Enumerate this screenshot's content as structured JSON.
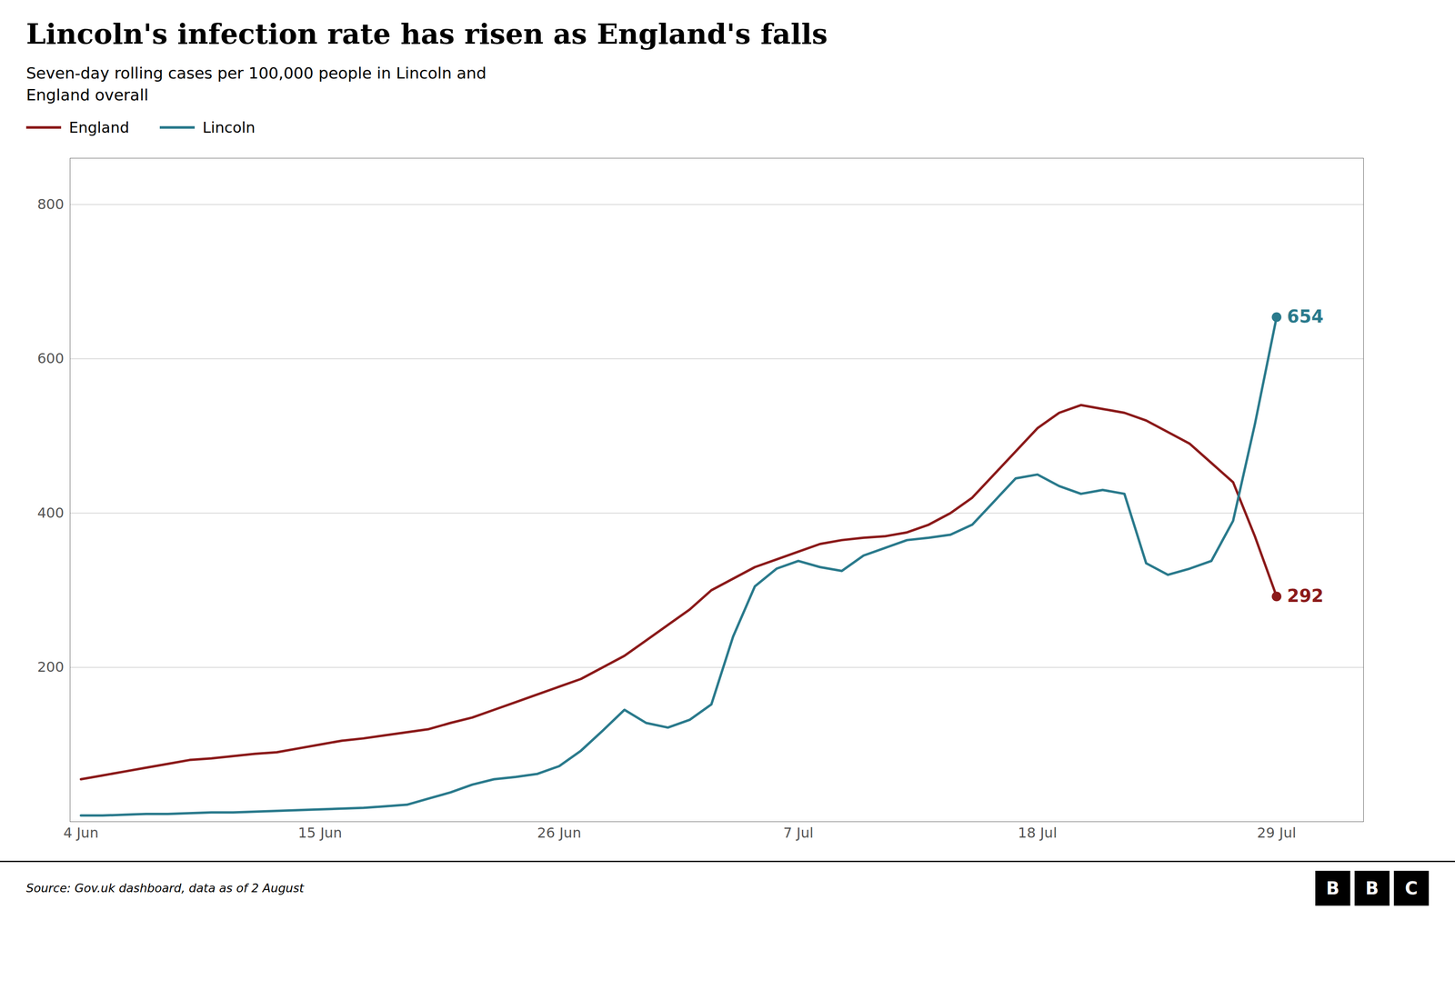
{
  "chart_data": {
    "type": "line",
    "title": "Lincoln's infection rate has risen as England's falls",
    "subtitle": "Seven-day rolling cases per 100,000 people in Lincoln and\nEngland overall",
    "source": "Source: Gov.uk dashboard, data as of  2 August",
    "logo": "BBC",
    "x": [
      0,
      1,
      2,
      3,
      4,
      5,
      6,
      7,
      8,
      9,
      10,
      11,
      12,
      13,
      14,
      15,
      16,
      17,
      18,
      19,
      20,
      21,
      22,
      23,
      24,
      25,
      26,
      27,
      28,
      29,
      30,
      31,
      32,
      33,
      34,
      35,
      36,
      37,
      38,
      39,
      40,
      41,
      42,
      43,
      44,
      45,
      46,
      47,
      48,
      49,
      50,
      51,
      52,
      53,
      54,
      55
    ],
    "series": [
      {
        "name": "England",
        "color": "#8B1A1A",
        "values": [
          55,
          60,
          65,
          70,
          75,
          80,
          82,
          85,
          88,
          90,
          95,
          100,
          105,
          108,
          112,
          116,
          120,
          128,
          135,
          145,
          155,
          165,
          175,
          185,
          200,
          215,
          235,
          255,
          275,
          300,
          315,
          330,
          340,
          350,
          360,
          365,
          368,
          370,
          375,
          385,
          400,
          420,
          450,
          480,
          510,
          530,
          540,
          535,
          530,
          520,
          505,
          490,
          465,
          440,
          370,
          292
        ]
      },
      {
        "name": "Lincoln",
        "color": "#2A7A8C",
        "values": [
          8,
          8,
          9,
          10,
          10,
          11,
          12,
          12,
          13,
          14,
          15,
          16,
          17,
          18,
          20,
          22,
          30,
          38,
          48,
          55,
          58,
          62,
          72,
          92,
          118,
          145,
          128,
          122,
          132,
          152,
          240,
          305,
          328,
          338,
          330,
          325,
          345,
          355,
          365,
          368,
          372,
          385,
          415,
          445,
          450,
          435,
          425,
          430,
          425,
          335,
          320,
          328,
          338,
          390,
          515,
          654
        ]
      }
    ],
    "annotations": [
      {
        "text": "292",
        "x": 55,
        "y": 292,
        "color": "#8B1A1A"
      },
      {
        "text": "654",
        "x": 55,
        "y": 654,
        "color": "#2A7A8C"
      }
    ],
    "xlim": [
      -0.5,
      59
    ],
    "xticks": [
      {
        "value": 0,
        "label": "4 Jun"
      },
      {
        "value": 11,
        "label": "15 Jun"
      },
      {
        "value": 22,
        "label": "26 Jun"
      },
      {
        "value": 33,
        "label": "7 Jul"
      },
      {
        "value": 44,
        "label": "18 Jul"
      },
      {
        "value": 55,
        "label": "29 Jul"
      }
    ],
    "ylim": [
      0,
      860
    ],
    "yticks": [
      200,
      400,
      600,
      800
    ],
    "grid": true,
    "legend": "upper left"
  }
}
